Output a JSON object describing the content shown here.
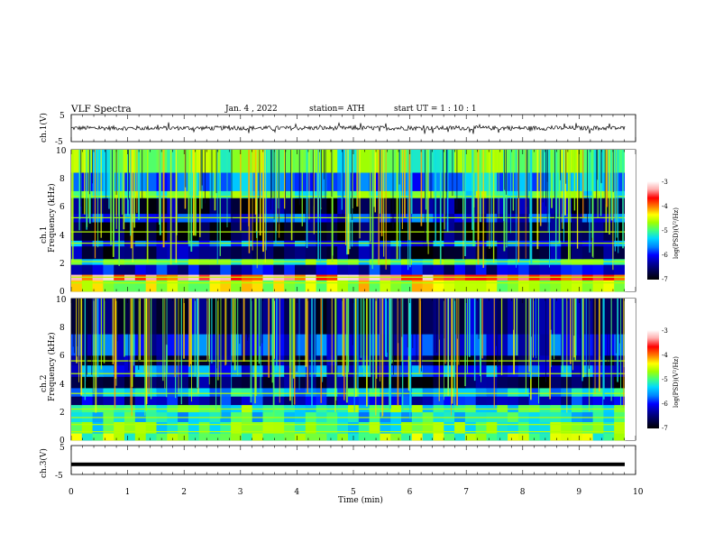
{
  "header": {
    "title": "VLF  Spectra",
    "date": "Jan.  4  ,  2022",
    "station": "station= ATH",
    "start_time": "start  UT  =    1  : 10 : 1"
  },
  "colors": {
    "spectrogram_scale": [
      "#000000",
      "#00004a",
      "#0000a0",
      "#0000ff",
      "#0080ff",
      "#00d8ff",
      "#40ff80",
      "#a0ff00",
      "#ffff00",
      "#ff8000",
      "#ff0000",
      "#ffb0b0",
      "#ffffff"
    ],
    "trace": "#000000"
  },
  "chart_data": [
    {
      "type": "line",
      "name": "ch1-waveform",
      "ylabel": "ch.1(V)",
      "ylim": [
        -5,
        5
      ],
      "yticks": [
        "5",
        "-5"
      ],
      "xlim": [
        0,
        10
      ],
      "approx_level": 0.0,
      "approx_noise_range": [
        -1,
        1
      ]
    },
    {
      "type": "heatmap",
      "name": "ch1-spectrogram",
      "ylabel_top": "ch.1",
      "ylabel": "Frequency  (kHz)",
      "ylim": [
        0,
        10
      ],
      "yticks": [
        "0",
        "2",
        "4",
        "6",
        "8",
        "10"
      ],
      "xlim": [
        0,
        9.8
      ],
      "colorbar": {
        "label": "log(PSD)(V²/Hz)",
        "range": [
          -7,
          -3
        ],
        "ticks": [
          "-3",
          "-4",
          "-5",
          "-6",
          "-7"
        ]
      },
      "bands_khz": [
        {
          "from": 0.0,
          "to": 0.8,
          "level": -4.5
        },
        {
          "from": 0.8,
          "to": 1.2,
          "level": -3.6
        },
        {
          "from": 1.2,
          "to": 1.9,
          "level": -6.2
        },
        {
          "from": 1.9,
          "to": 2.3,
          "level": -5.0
        },
        {
          "from": 2.3,
          "to": 3.2,
          "level": -6.6
        },
        {
          "from": 3.2,
          "to": 3.6,
          "level": -5.8
        },
        {
          "from": 3.6,
          "to": 4.9,
          "level": -6.8
        },
        {
          "from": 4.9,
          "to": 5.5,
          "level": -6.0
        },
        {
          "from": 5.5,
          "to": 6.6,
          "level": -6.6
        },
        {
          "from": 6.6,
          "to": 7.1,
          "level": -5.0
        },
        {
          "from": 7.1,
          "to": 8.4,
          "level": -5.6
        },
        {
          "from": 8.4,
          "to": 10.0,
          "level": -4.9
        }
      ],
      "lines_khz": [
        0.6,
        1.0,
        2.1,
        3.4,
        4.2,
        5.2,
        6.7
      ]
    },
    {
      "type": "heatmap",
      "name": "ch2-spectrogram",
      "ylabel_top": "ch.2",
      "ylabel": "Frequency  (kHz)",
      "ylim": [
        0,
        10
      ],
      "yticks": [
        "0",
        "2",
        "4",
        "6",
        "8",
        "10"
      ],
      "xlim": [
        0,
        9.8
      ],
      "colorbar": {
        "label": "log(PSD)(V²/Hz)",
        "range": [
          -7,
          -3
        ],
        "ticks": [
          "-3",
          "-4",
          "-5",
          "-6",
          "-7"
        ]
      },
      "bands_khz": [
        {
          "from": 0.0,
          "to": 0.5,
          "level": -4.8
        },
        {
          "from": 0.5,
          "to": 1.3,
          "level": -5.0
        },
        {
          "from": 1.3,
          "to": 2.0,
          "level": -5.3
        },
        {
          "from": 2.0,
          "to": 2.5,
          "level": -5.0
        },
        {
          "from": 2.5,
          "to": 3.1,
          "level": -6.2
        },
        {
          "from": 3.1,
          "to": 3.7,
          "level": -5.4
        },
        {
          "from": 3.7,
          "to": 4.5,
          "level": -6.7
        },
        {
          "from": 4.5,
          "to": 5.3,
          "level": -5.8
        },
        {
          "from": 5.3,
          "to": 6.0,
          "level": -6.6
        },
        {
          "from": 6.0,
          "to": 7.5,
          "level": -6.0
        },
        {
          "from": 7.5,
          "to": 10.0,
          "level": -6.5
        }
      ],
      "lines_khz": [
        0.6,
        1.1,
        1.6,
        2.2,
        3.3,
        4.7,
        5.6
      ]
    },
    {
      "type": "line",
      "name": "ch3-waveform",
      "ylabel": "ch.3(V)",
      "ylim": [
        -5,
        5
      ],
      "yticks": [
        "5",
        "-5"
      ],
      "xlim": [
        0,
        10
      ],
      "approx_level": -1.5
    }
  ],
  "x_axis": {
    "label": "Time  (min)",
    "range": [
      0,
      10
    ],
    "ticks": [
      "0",
      "1",
      "2",
      "3",
      "4",
      "5",
      "6",
      "7",
      "8",
      "9",
      "10"
    ]
  }
}
